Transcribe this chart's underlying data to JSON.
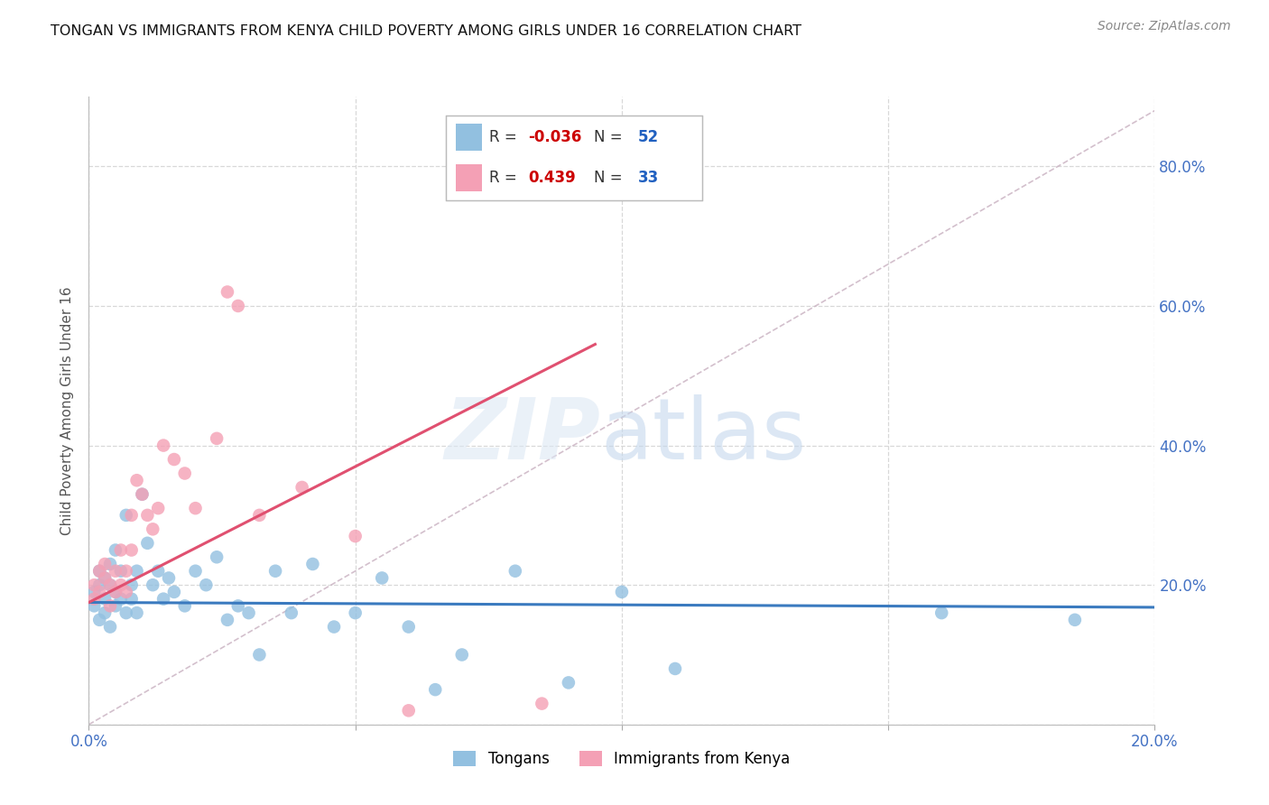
{
  "title": "TONGAN VS IMMIGRANTS FROM KENYA CHILD POVERTY AMONG GIRLS UNDER 16 CORRELATION CHART",
  "source": "Source: ZipAtlas.com",
  "ylabel": "Child Poverty Among Girls Under 16",
  "xlim": [
    0.0,
    0.2
  ],
  "ylim": [
    0.0,
    0.9
  ],
  "xticks": [
    0.0,
    0.05,
    0.1,
    0.15,
    0.2
  ],
  "yticks": [
    0.0,
    0.2,
    0.4,
    0.6,
    0.8
  ],
  "ytick_labels": [
    "",
    "20.0%",
    "40.0%",
    "60.0%",
    "80.0%"
  ],
  "xtick_labels": [
    "0.0%",
    "",
    "",
    "",
    "20.0%"
  ],
  "legend_blue_r": "-0.036",
  "legend_blue_n": "52",
  "legend_pink_r": "0.439",
  "legend_pink_n": "33",
  "blue_color": "#92c0e0",
  "pink_color": "#f4a0b5",
  "trend_blue_color": "#3a7abf",
  "trend_pink_color": "#e05070",
  "ref_line_color": "#c8b0c0",
  "blue_trend_x": [
    0.0,
    0.2
  ],
  "blue_trend_y": [
    0.175,
    0.168
  ],
  "pink_trend_x": [
    0.0,
    0.095
  ],
  "pink_trend_y": [
    0.175,
    0.545
  ],
  "ref_line_x": [
    0.0,
    0.2
  ],
  "ref_line_y": [
    0.0,
    0.88
  ],
  "tongans_x": [
    0.001,
    0.001,
    0.002,
    0.002,
    0.002,
    0.003,
    0.003,
    0.003,
    0.004,
    0.004,
    0.004,
    0.005,
    0.005,
    0.005,
    0.006,
    0.006,
    0.007,
    0.007,
    0.008,
    0.008,
    0.009,
    0.009,
    0.01,
    0.011,
    0.012,
    0.013,
    0.014,
    0.015,
    0.016,
    0.018,
    0.02,
    0.022,
    0.024,
    0.026,
    0.028,
    0.03,
    0.032,
    0.035,
    0.038,
    0.042,
    0.046,
    0.05,
    0.055,
    0.06,
    0.065,
    0.07,
    0.08,
    0.09,
    0.1,
    0.11,
    0.16,
    0.185
  ],
  "tongans_y": [
    0.19,
    0.17,
    0.2,
    0.15,
    0.22,
    0.18,
    0.21,
    0.16,
    0.23,
    0.14,
    0.2,
    0.19,
    0.17,
    0.25,
    0.18,
    0.22,
    0.16,
    0.3,
    0.2,
    0.18,
    0.22,
    0.16,
    0.33,
    0.26,
    0.2,
    0.22,
    0.18,
    0.21,
    0.19,
    0.17,
    0.22,
    0.2,
    0.24,
    0.15,
    0.17,
    0.16,
    0.1,
    0.22,
    0.16,
    0.23,
    0.14,
    0.16,
    0.21,
    0.14,
    0.05,
    0.1,
    0.22,
    0.06,
    0.19,
    0.08,
    0.16,
    0.15
  ],
  "kenya_x": [
    0.001,
    0.001,
    0.002,
    0.002,
    0.003,
    0.003,
    0.004,
    0.004,
    0.005,
    0.005,
    0.006,
    0.006,
    0.007,
    0.007,
    0.008,
    0.008,
    0.009,
    0.01,
    0.011,
    0.012,
    0.013,
    0.014,
    0.016,
    0.018,
    0.02,
    0.024,
    0.026,
    0.028,
    0.032,
    0.04,
    0.05,
    0.06,
    0.085
  ],
  "kenya_y": [
    0.2,
    0.18,
    0.22,
    0.19,
    0.21,
    0.23,
    0.2,
    0.17,
    0.22,
    0.19,
    0.25,
    0.2,
    0.22,
    0.19,
    0.3,
    0.25,
    0.35,
    0.33,
    0.3,
    0.28,
    0.31,
    0.4,
    0.38,
    0.36,
    0.31,
    0.41,
    0.62,
    0.6,
    0.3,
    0.34,
    0.27,
    0.02,
    0.03
  ],
  "watermark_zip": "ZIP",
  "watermark_atlas": "atlas",
  "bg_color": "white",
  "grid_color": "#d8d8d8",
  "tick_label_color": "#4472c4",
  "ylabel_color": "#555555",
  "title_color": "#111111",
  "source_color": "#888888"
}
